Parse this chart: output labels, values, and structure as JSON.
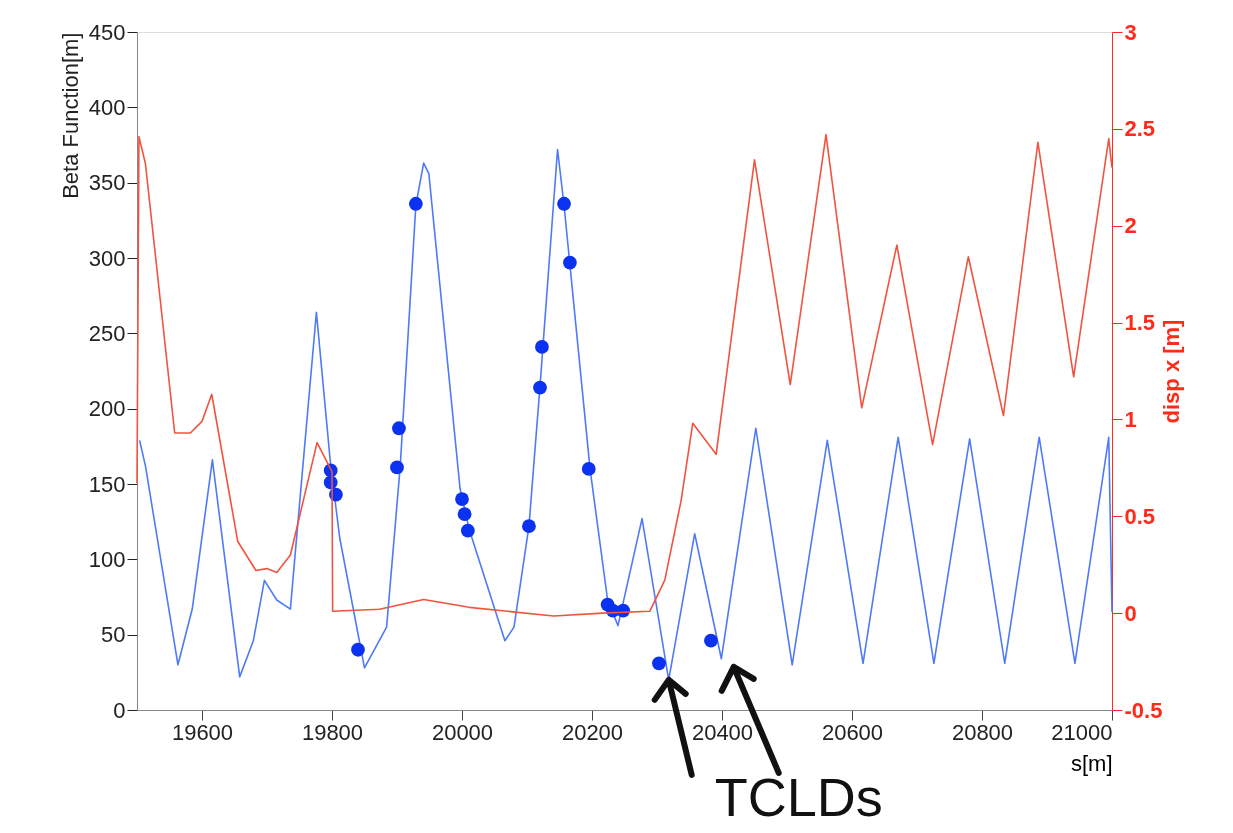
{
  "chart_data": {
    "type": "line",
    "xlabel": "s[m]",
    "ylabel": "Beta Function[m]",
    "y2label": "disp x [m]",
    "xlim": [
      19500,
      21000
    ],
    "xticks": [
      19600,
      19800,
      20000,
      20200,
      20400,
      20600,
      20800,
      21000
    ],
    "ylim": [
      0,
      450
    ],
    "yticks": [
      0,
      50,
      100,
      150,
      200,
      250,
      300,
      350,
      400,
      450
    ],
    "y2lim": [
      -0.5,
      3
    ],
    "y2ticks": [
      -0.5,
      0,
      0.5,
      1,
      1.5,
      2,
      2.5,
      3
    ],
    "grid": false,
    "marker": "none",
    "line_style": "solid",
    "annotations": [
      {
        "text": "TCLDs",
        "x": 20318,
        "y": 20
      }
    ],
    "series": [
      {
        "axis": "y",
        "color": "#4f7af7",
        "x": [
          19504,
          19513,
          19563,
          19585,
          19616,
          19658,
          19679,
          19696,
          19715,
          19736,
          19743,
          19776,
          19798,
          19812,
          19850,
          19884,
          19905,
          19929,
          19941,
          19949,
          19997,
          20011,
          20066,
          20080,
          20103,
          20120,
          20147,
          20157,
          20197,
          20224,
          20240,
          20277,
          20318,
          20358,
          20399,
          20452,
          20508,
          20562,
          20617,
          20671,
          20726,
          20781,
          20835,
          20888,
          20943,
          20995,
          21000
        ],
        "values": [
          179,
          162,
          30,
          67,
          166,
          22,
          46,
          86,
          73,
          67,
          102,
          264,
          162,
          114,
          28,
          55,
          162,
          335,
          363,
          356,
          147,
          120,
          46,
          55,
          122,
          215,
          372,
          335,
          160,
          73,
          56,
          127,
          20,
          117,
          34,
          187,
          30,
          179,
          31,
          181,
          31,
          180,
          31,
          181,
          31,
          181,
          65
        ]
      },
      {
        "type": "scatter",
        "axis": "y",
        "color": "#0a32f0",
        "marker": "circle",
        "x": [
          19798,
          19798,
          19806,
          19840,
          19903,
          19900,
          19929,
          20000,
          20004,
          20009,
          20103,
          20120,
          20123,
          20157,
          20166,
          20195,
          20224,
          20232,
          20248,
          20303,
          20383
        ],
        "values": [
          159,
          151,
          143,
          40,
          187,
          161,
          336,
          140,
          130,
          119,
          122,
          214,
          241,
          336,
          297,
          160,
          70,
          66,
          66,
          31,
          46
        ]
      },
      {
        "axis": "y2",
        "color": "#f2533f",
        "x": [
          19500,
          19503,
          19513,
          19558,
          19582,
          19600,
          19615,
          19655,
          19683,
          19700,
          19715,
          19736,
          19777,
          19800,
          19801,
          19873,
          19941,
          20011,
          20141,
          20216,
          20289,
          20312,
          20337,
          20355,
          20391,
          20450,
          20505,
          20560,
          20615,
          20669,
          20724,
          20779,
          20833,
          20886,
          20941,
          20995,
          21000
        ],
        "values": [
          0.67,
          2.46,
          2.32,
          0.93,
          0.93,
          0.99,
          1.13,
          0.37,
          0.22,
          0.23,
          0.21,
          0.3,
          0.88,
          0.73,
          0.01,
          0.02,
          0.07,
          0.03,
          -0.015,
          0.0,
          0.01,
          0.17,
          0.58,
          0.98,
          0.82,
          2.34,
          1.18,
          2.47,
          1.06,
          1.9,
          0.87,
          1.84,
          1.02,
          2.43,
          1.22,
          2.45,
          2.3
        ]
      }
    ]
  }
}
